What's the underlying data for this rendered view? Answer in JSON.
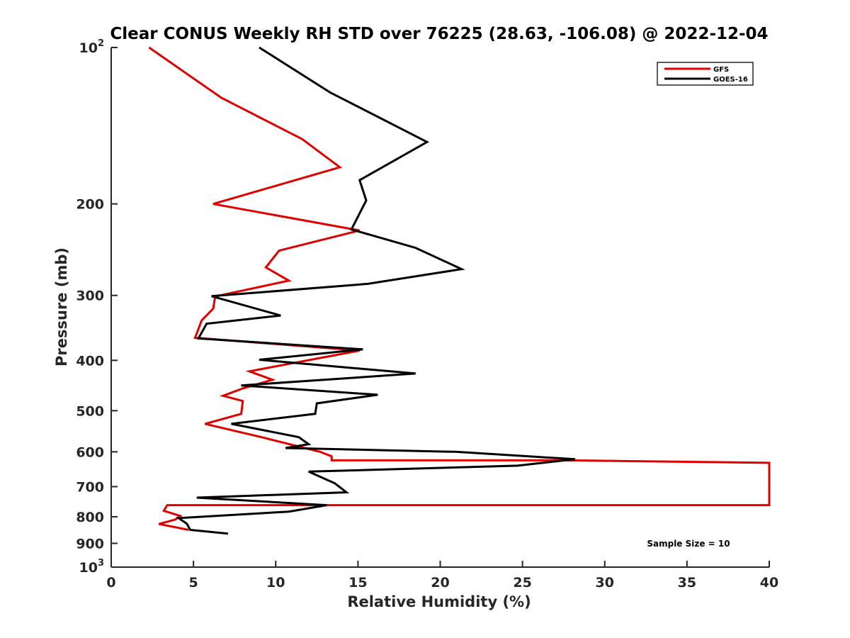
{
  "chart_data": {
    "type": "line",
    "title": "Clear CONUS Weekly RH STD over 76225 (28.63, -106.08) @ 2022-12-04",
    "xlabel": "Relative Humidity (%)",
    "ylabel": "Pressure (mb)",
    "xlim": [
      0,
      40
    ],
    "ylim": [
      100,
      1000
    ],
    "y_scale": "log",
    "y_reversed": true,
    "x_ticks": [
      0,
      5,
      10,
      15,
      20,
      25,
      30,
      35,
      40
    ],
    "x_tick_labels": [
      "0",
      "5",
      "10",
      "15",
      "20",
      "25",
      "30",
      "35",
      "40"
    ],
    "y_ticks": [
      {
        "value": 100,
        "label": "10",
        "sup": "2"
      },
      {
        "value": 200,
        "label": "200"
      },
      {
        "value": 300,
        "label": "300"
      },
      {
        "value": 400,
        "label": "400"
      },
      {
        "value": 500,
        "label": "500"
      },
      {
        "value": 600,
        "label": "600"
      },
      {
        "value": 700,
        "label": "700"
      },
      {
        "value": 800,
        "label": "800"
      },
      {
        "value": 900,
        "label": "900"
      },
      {
        "value": 1000,
        "label": "10",
        "sup": "3"
      }
    ],
    "legend_position": "top-right",
    "grid": false,
    "series": [
      {
        "name": "GFS",
        "color": "#e00000",
        "points": [
          [
            2.3,
            100
          ],
          [
            6.7,
            125
          ],
          [
            11.6,
            150
          ],
          [
            13.9,
            170
          ],
          [
            6.2,
            200
          ],
          [
            15.1,
            225
          ],
          [
            10.2,
            246
          ],
          [
            9.4,
            265
          ],
          [
            10.8,
            281
          ],
          [
            6.4,
            301
          ],
          [
            6.3,
            304
          ],
          [
            6.2,
            318
          ],
          [
            5.5,
            335
          ],
          [
            5.1,
            362
          ],
          [
            15.1,
            383
          ],
          [
            8.4,
            420
          ],
          [
            9.8,
            436
          ],
          [
            8.0,
            453
          ],
          [
            6.8,
            468
          ],
          [
            8.0,
            479
          ],
          [
            7.9,
            507
          ],
          [
            5.7,
            530
          ],
          [
            9.2,
            563
          ],
          [
            12.7,
            600
          ],
          [
            13.4,
            612
          ],
          [
            13.4,
            623
          ],
          [
            27.9,
            623
          ],
          [
            40,
            630
          ],
          [
            40,
            760
          ],
          [
            3.4,
            760
          ],
          [
            3.2,
            779
          ],
          [
            4.2,
            797
          ],
          [
            3.9,
            810
          ],
          [
            2.9,
            826
          ],
          [
            4.7,
            848
          ]
        ]
      },
      {
        "name": "GOES-16",
        "color": "#000000",
        "points": [
          [
            9.0,
            100
          ],
          [
            13.3,
            122
          ],
          [
            19.2,
            152
          ],
          [
            15.1,
            180
          ],
          [
            15.5,
            197
          ],
          [
            14.6,
            224
          ],
          [
            18.5,
            243
          ],
          [
            21.3,
            267
          ],
          [
            15.6,
            285
          ],
          [
            6.1,
            301
          ],
          [
            10.3,
            328
          ],
          [
            5.8,
            340
          ],
          [
            5.3,
            363
          ],
          [
            15.3,
            381
          ],
          [
            9.0,
            399
          ],
          [
            18.5,
            424
          ],
          [
            7.9,
            447
          ],
          [
            16.2,
            466
          ],
          [
            12.5,
            484
          ],
          [
            12.4,
            507
          ],
          [
            7.3,
            530
          ],
          [
            11.4,
            562
          ],
          [
            12.0,
            580
          ],
          [
            10.6,
            590
          ],
          [
            21.0,
            600
          ],
          [
            28.2,
            620
          ],
          [
            24.7,
            638
          ],
          [
            12.0,
            655
          ],
          [
            13.6,
            690
          ],
          [
            14.3,
            718
          ],
          [
            5.2,
            735
          ],
          [
            13.1,
            760
          ],
          [
            10.8,
            782
          ],
          [
            4.1,
            805
          ],
          [
            4.6,
            825
          ],
          [
            4.8,
            848
          ],
          [
            7.1,
            862
          ]
        ]
      }
    ],
    "annotation": "Sample Size = 10"
  }
}
